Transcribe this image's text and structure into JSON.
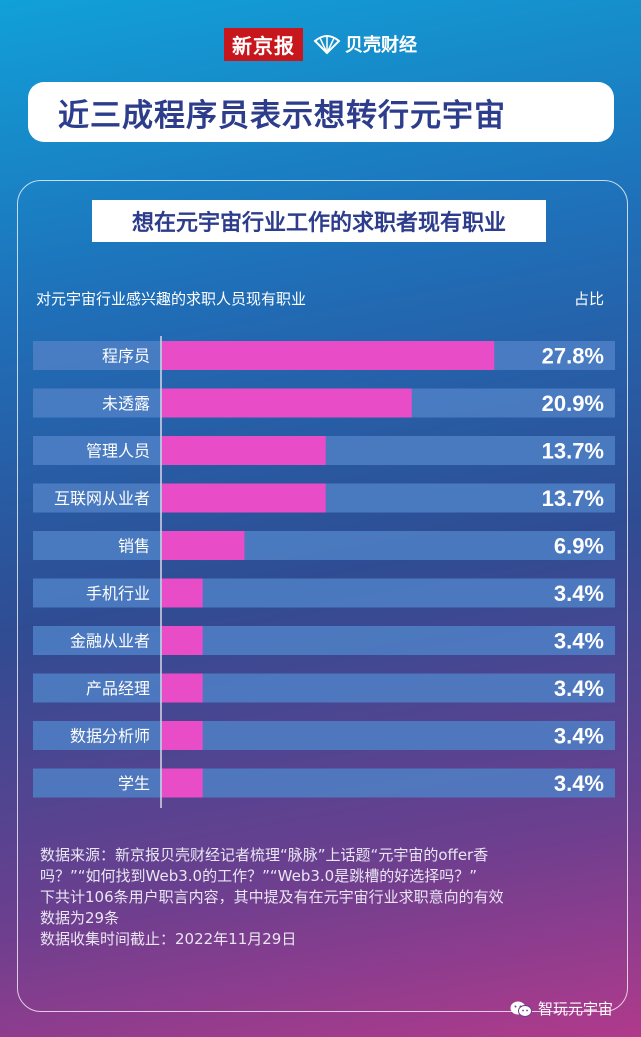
{
  "brand": {
    "newspaper": "新京报",
    "partner": "贝壳财经"
  },
  "headline": "近三成程序员表示想转行元宇宙",
  "chart_data": {
    "type": "bar",
    "orientation": "horizontal",
    "title": "想在元宇宙行业工作的求职者现有职业",
    "category_header": "对元宇宙行业感兴趣的求职人员现有职业",
    "value_header": "占比",
    "categories": [
      "程序员",
      "未透露",
      "管理人员",
      "互联网从业者",
      "销售",
      "手机行业",
      "金融从业者",
      "产品经理",
      "数据分析师",
      "学生"
    ],
    "values": [
      27.8,
      20.9,
      13.7,
      13.7,
      6.9,
      3.4,
      3.4,
      3.4,
      3.4,
      3.4
    ],
    "value_labels": [
      "27.8%",
      "20.9%",
      "13.7%",
      "13.7%",
      "6.9%",
      "3.4%",
      "3.4%",
      "3.4%",
      "3.4%",
      "3.4%"
    ],
    "xlim": [
      0,
      40
    ],
    "bar_color": "#e94cc7",
    "track_color": "#4f80c6"
  },
  "footnote": {
    "lines": [
      "数据来源：新京报贝壳财经记者梳理“脉脉”上话题“元宇宙的offer香",
      "吗？”“如何找到Web3.0的工作？”“Web3.0是跳槽的好选择吗？”",
      "下共计106条用户职言内容，其中提及有在元宇宙行业求职意向的有效",
      "数据为29条",
      "数据收集时间截止：2022年11月29日"
    ]
  },
  "watermark": "智玩元宇宙"
}
